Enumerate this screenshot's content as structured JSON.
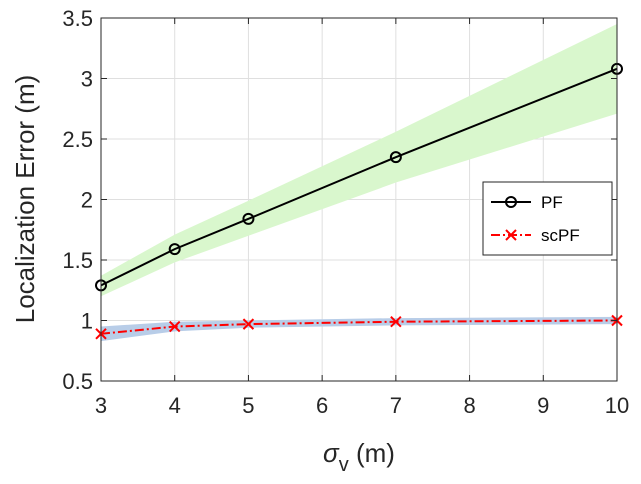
{
  "chart_data": {
    "type": "line",
    "title": "",
    "xlabel": "σ_v (m)",
    "xlabel_symbol": "σ",
    "xlabel_subscript": "v",
    "xlabel_unit": " (m)",
    "ylabel": "Localization Error (m)",
    "xlim": [
      3,
      10
    ],
    "ylim": [
      0.5,
      3.5
    ],
    "x_ticks": [
      3,
      4,
      5,
      6,
      7,
      8,
      9,
      10
    ],
    "y_ticks": [
      0.5,
      1,
      1.5,
      2,
      2.5,
      3,
      3.5
    ],
    "x_tick_labels": [
      "3",
      "4",
      "5",
      "6",
      "7",
      "8",
      "9",
      "10"
    ],
    "y_tick_labels": [
      "0.5",
      "1",
      "1.5",
      "2",
      "2.5",
      "3",
      "3.5"
    ],
    "grid": true,
    "legend_position": "right-center",
    "x": [
      3,
      4,
      5,
      7,
      10
    ],
    "series": [
      {
        "name": "PF",
        "values": [
          1.29,
          1.59,
          1.84,
          2.35,
          3.08
        ],
        "band_lower": [
          1.2,
          1.48,
          1.7,
          2.14,
          2.71
        ],
        "band_upper": [
          1.37,
          1.71,
          1.99,
          2.56,
          3.45
        ],
        "color": "#000000",
        "band_color": "#d9f7cd",
        "marker": "circle",
        "line_style": "solid"
      },
      {
        "name": "scPF",
        "values": [
          0.89,
          0.95,
          0.97,
          0.99,
          1.0
        ],
        "band_lower": [
          0.83,
          0.91,
          0.94,
          0.96,
          0.97
        ],
        "band_upper": [
          0.95,
          0.99,
          1.0,
          1.02,
          1.03
        ],
        "color": "#ff0000",
        "band_color": "#b8cde8",
        "marker": "x",
        "line_style": "dashdot"
      }
    ]
  }
}
